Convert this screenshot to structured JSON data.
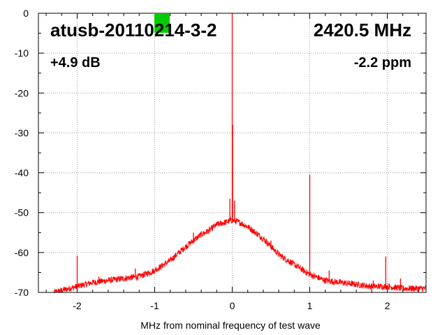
{
  "chart_data": {
    "type": "line",
    "title": "",
    "xlabel": "MHz from nominal frequency of test wave",
    "ylabel": "",
    "xlim": [
      -2.5,
      2.5
    ],
    "ylim": [
      -70,
      0
    ],
    "x_ticks": [
      -2,
      -1,
      0,
      1,
      2
    ],
    "x_tick_labels": [
      "-2",
      "-1",
      "0",
      "1",
      "2"
    ],
    "y_ticks": [
      0,
      -10,
      -20,
      -30,
      -40,
      -50,
      -60,
      -70
    ],
    "y_tick_labels": [
      "0",
      "-10",
      "-20",
      "-30",
      "-40",
      "-50",
      "-60",
      "-70"
    ],
    "grid": true,
    "series_color": "#ff0000",
    "noise_floor_points": {
      "x": [
        -2.5,
        -2.3,
        -2.2,
        -2.0,
        -1.8,
        -1.6,
        -1.4,
        -1.2,
        -1.0,
        -0.8,
        -0.6,
        -0.4,
        -0.3,
        -0.2,
        -0.1,
        -0.02,
        0.02,
        0.1,
        0.2,
        0.3,
        0.4,
        0.6,
        0.8,
        1.0,
        1.2,
        1.4,
        1.6,
        1.8,
        2.0,
        2.2,
        2.5
      ],
      "y": [
        -70,
        -70,
        -69.5,
        -68.5,
        -67.5,
        -67,
        -66.5,
        -66,
        -64.5,
        -62,
        -58.5,
        -55.5,
        -54.5,
        -53,
        -52.5,
        -52,
        -52,
        -52.5,
        -53.5,
        -55,
        -56.5,
        -60.5,
        -63,
        -65.5,
        -67,
        -67.5,
        -68,
        -68.5,
        -68.5,
        -69,
        -69
      ]
    },
    "spikes": [
      {
        "x": -2.0,
        "y": -60.8
      },
      {
        "x": -1.72,
        "y": -66
      },
      {
        "x": -1.25,
        "y": -64
      },
      {
        "x": -0.5,
        "y": -55
      },
      {
        "x": -0.03,
        "y": -46.5
      },
      {
        "x": 0.0,
        "y": 0
      },
      {
        "x": 0.005,
        "y": -28
      },
      {
        "x": 0.03,
        "y": -47
      },
      {
        "x": 0.5,
        "y": -57
      },
      {
        "x": 1.0,
        "y": -40.5
      },
      {
        "x": 1.25,
        "y": -64.5
      },
      {
        "x": 1.82,
        "y": -67
      },
      {
        "x": 1.98,
        "y": -61
      },
      {
        "x": 2.17,
        "y": -66.5
      }
    ],
    "annotations": {
      "device_id": "atusb-20110214-3-2",
      "frequency": "2420.5 MHz",
      "gain": "+4.9 dB",
      "ppm": "-2.2 ppm"
    },
    "status_marker_color": "#00cc00"
  }
}
